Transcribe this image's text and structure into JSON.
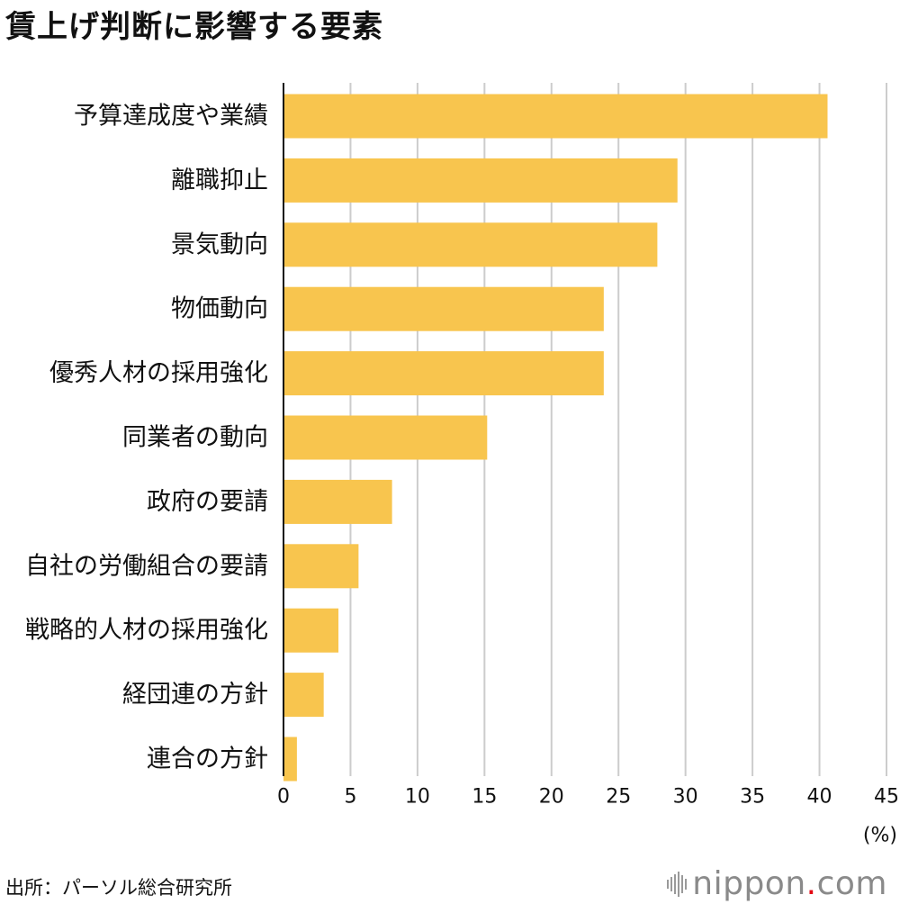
{
  "title": "賃上げ判断に影響する要素",
  "source": "出所：パーソル総合研究所",
  "brand": {
    "name_part1": "nippon",
    "name_dot": ".",
    "name_part2": "com",
    "icon": "sound-wave-icon"
  },
  "colors": {
    "bar": "#F8C54E",
    "grid": "#CCCCCC",
    "axis": "#111111",
    "text": "#111111"
  },
  "chart_data": {
    "type": "bar",
    "orientation": "horizontal",
    "title": "賃上げ判断に影響する要素",
    "categories": [
      "予算達成度や業績",
      "離職抑止",
      "景気動向",
      "物価動向",
      "優秀人材の採用強化",
      "同業者の動向",
      "政府の要請",
      "自社の労働組合の要請",
      "戦略的人材の採用強化",
      "経団連の方針",
      "連合の方針"
    ],
    "values": [
      40.6,
      29.4,
      27.9,
      23.9,
      23.9,
      15.2,
      8.1,
      5.6,
      4.1,
      3.0,
      1.0
    ],
    "xlim": [
      0,
      45
    ],
    "xticks": [
      0,
      5,
      10,
      15,
      20,
      25,
      30,
      35,
      40,
      45
    ],
    "xtick_labels": [
      "0",
      "5",
      "10",
      "15",
      "20",
      "25",
      "30",
      "35",
      "40",
      "45"
    ],
    "unit_label": "(%)",
    "xlabel": "",
    "ylabel": "",
    "grid": true
  }
}
